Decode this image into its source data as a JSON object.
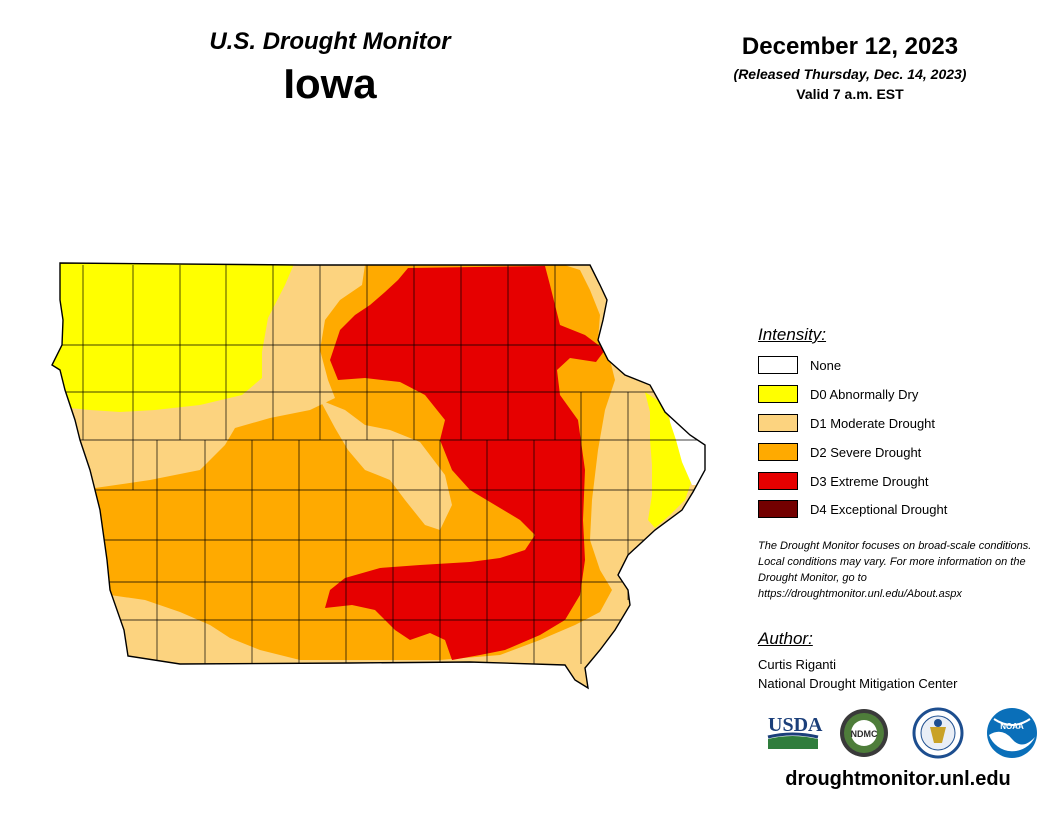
{
  "header": {
    "program": "U.S. Drought Monitor",
    "state": "Iowa",
    "date": "December 12, 2023",
    "released": "(Released Thursday, Dec. 14, 2023)",
    "valid": "Valid 7 a.m. EST"
  },
  "legend": {
    "heading": "Intensity:",
    "items": [
      {
        "label": "None",
        "color": "#ffffff"
      },
      {
        "label": "D0 Abnormally Dry",
        "color": "#ffff00"
      },
      {
        "label": "D1 Moderate Drought",
        "color": "#fcd37f"
      },
      {
        "label": "D2 Severe Drought",
        "color": "#ffaa00"
      },
      {
        "label": "D3 Extreme Drought",
        "color": "#e60000"
      },
      {
        "label": "D4 Exceptional Drought",
        "color": "#730000"
      }
    ]
  },
  "note": "The Drought Monitor focuses on broad-scale conditions. Local conditions may vary. For more information on the Drought Monitor, go to https://droughtmonitor.unl.edu/About.aspx",
  "author": {
    "heading": "Author:",
    "name": "Curtis Riganti",
    "organization": "National Drought Mitigation Center"
  },
  "logos": {
    "usda": "USDA",
    "ndmc": "NDMC",
    "noaa": "NOAA"
  },
  "website": "droughtmonitor.unl.edu"
}
